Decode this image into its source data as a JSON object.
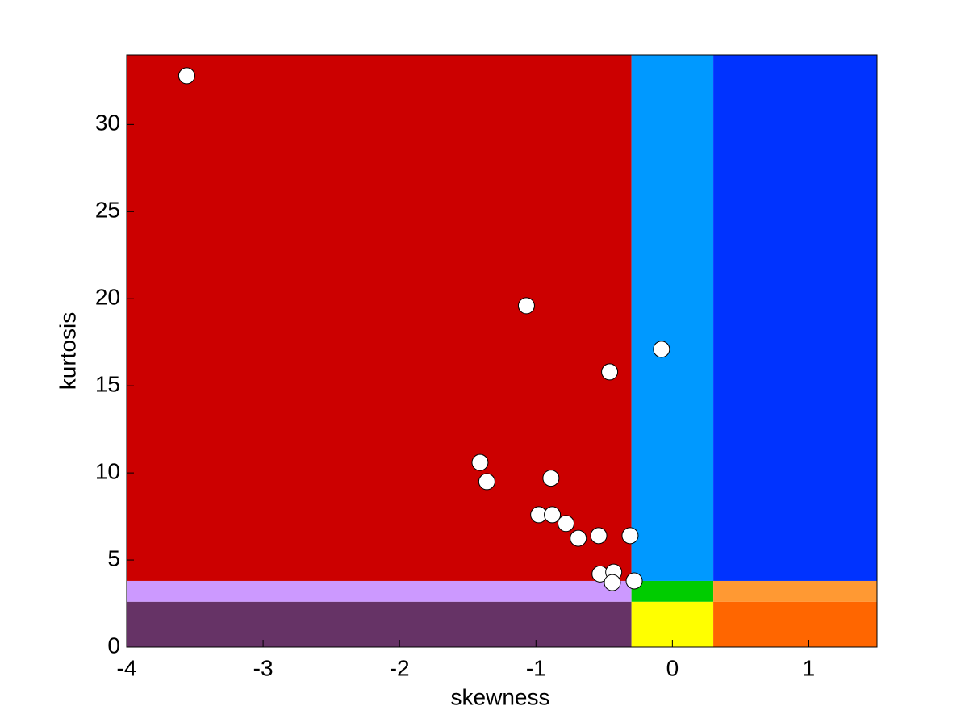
{
  "chart_data": {
    "type": "scatter",
    "x_label": "skewness",
    "y_label": "kurtosis",
    "x": [
      -3.56,
      -1.07,
      -0.08,
      -0.46,
      -1.41,
      -1.36,
      -0.89,
      -0.98,
      -0.88,
      -0.78,
      -0.69,
      -0.54,
      -0.31,
      -0.53,
      -0.43,
      -0.44,
      -0.28
    ],
    "y": [
      32.8,
      19.6,
      17.1,
      15.8,
      10.6,
      9.5,
      9.7,
      7.6,
      7.6,
      7.1,
      6.25,
      6.4,
      6.4,
      4.2,
      4.3,
      3.7,
      3.8
    ],
    "marker_color": "#ffffff",
    "xlim": [
      -4,
      1.5
    ],
    "ylim": [
      0,
      34
    ],
    "xticks": [
      -4,
      -3,
      -2,
      -1,
      0,
      1
    ],
    "yticks": [
      0,
      5,
      10,
      15,
      20,
      25,
      30
    ],
    "regions": [
      {
        "x": [
          -4,
          -0.3
        ],
        "y": [
          3.8,
          34
        ],
        "color": "#cc0000"
      },
      {
        "x": [
          -0.3,
          0.3
        ],
        "y": [
          3.8,
          34
        ],
        "color": "#0099ff"
      },
      {
        "x": [
          0.3,
          1.5
        ],
        "y": [
          3.8,
          34
        ],
        "color": "#0033ff"
      },
      {
        "x": [
          -4,
          -0.3
        ],
        "y": [
          2.6,
          3.8
        ],
        "color": "#cc99ff"
      },
      {
        "x": [
          -0.3,
          0.3
        ],
        "y": [
          2.6,
          3.8
        ],
        "color": "#00cc00"
      },
      {
        "x": [
          0.3,
          1.5
        ],
        "y": [
          2.6,
          3.8
        ],
        "color": "#ff9933"
      },
      {
        "x": [
          -4,
          -0.3
        ],
        "y": [
          0,
          2.6
        ],
        "color": "#663366"
      },
      {
        "x": [
          -0.3,
          0.3
        ],
        "y": [
          0,
          2.6
        ],
        "color": "#ffff00"
      },
      {
        "x": [
          0.3,
          1.5
        ],
        "y": [
          0,
          2.6
        ],
        "color": "#ff6600"
      }
    ]
  }
}
